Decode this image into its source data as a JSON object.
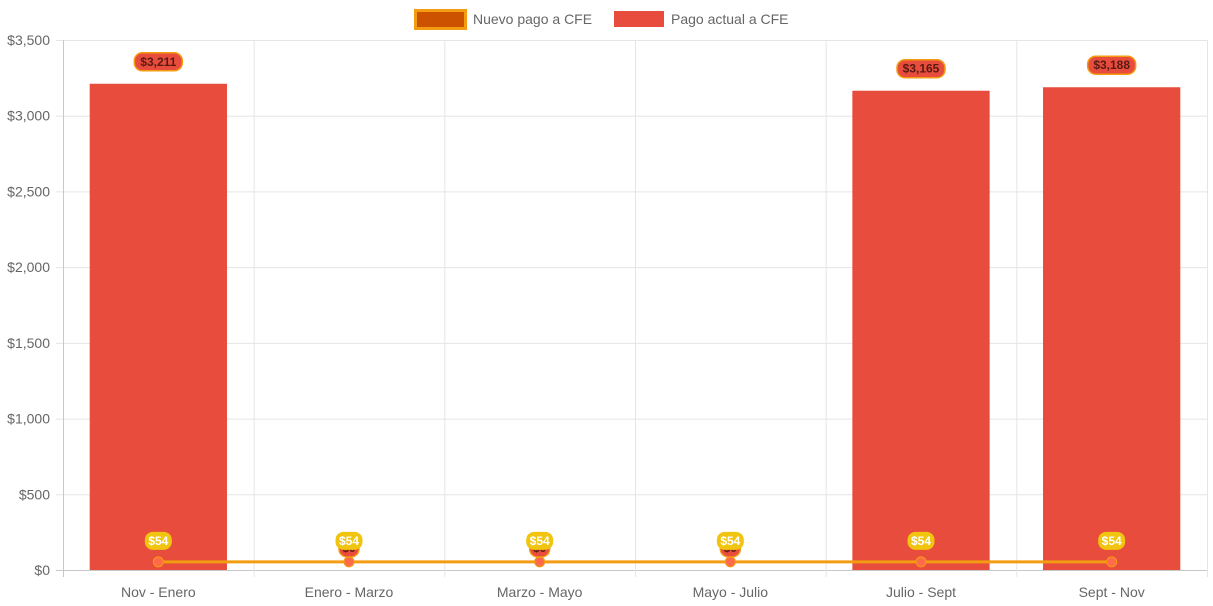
{
  "colors": {
    "bar_fill": "#e74c3c",
    "line": "#f39c12",
    "line_point": "#ff6b4a",
    "legend_line_fill": "#cc5200",
    "label_line_bg": "#f1c40f",
    "label_bar_bg": "#e74c3c",
    "label_bar_border": "#f39c12",
    "label_bar_text": "#5a1a12",
    "grid": "#e5e5e5",
    "axis": "#c8c8c8"
  },
  "chart_data": {
    "type": "bar",
    "categories": [
      "Nov - Enero",
      "Enero - Marzo",
      "Marzo - Mayo",
      "Mayo - Julio",
      "Julio - Sept",
      "Sept - Nov"
    ],
    "series": [
      {
        "name": "Nuevo pago a CFE",
        "kind": "line",
        "values": [
          54,
          54,
          54,
          54,
          54,
          54
        ],
        "data_labels": [
          "$54",
          "$54",
          "$54",
          "$54",
          "$54",
          "$54"
        ]
      },
      {
        "name": "Pago actual a CFE",
        "kind": "bar",
        "values": [
          3211,
          0,
          0,
          0,
          3165,
          3188
        ],
        "data_labels": [
          "$3,211",
          "$0",
          "$0",
          "$0",
          "$3,165",
          "$3,188"
        ]
      }
    ],
    "ylim": [
      0,
      3500
    ],
    "y_ticks": [
      0,
      500,
      1000,
      1500,
      2000,
      2500,
      3000,
      3500
    ],
    "y_tick_labels": [
      "$0",
      "$500",
      "$1,000",
      "$1,500",
      "$2,000",
      "$2,500",
      "$3,000",
      "$3,500"
    ],
    "grid": true,
    "legend_position": "top"
  }
}
